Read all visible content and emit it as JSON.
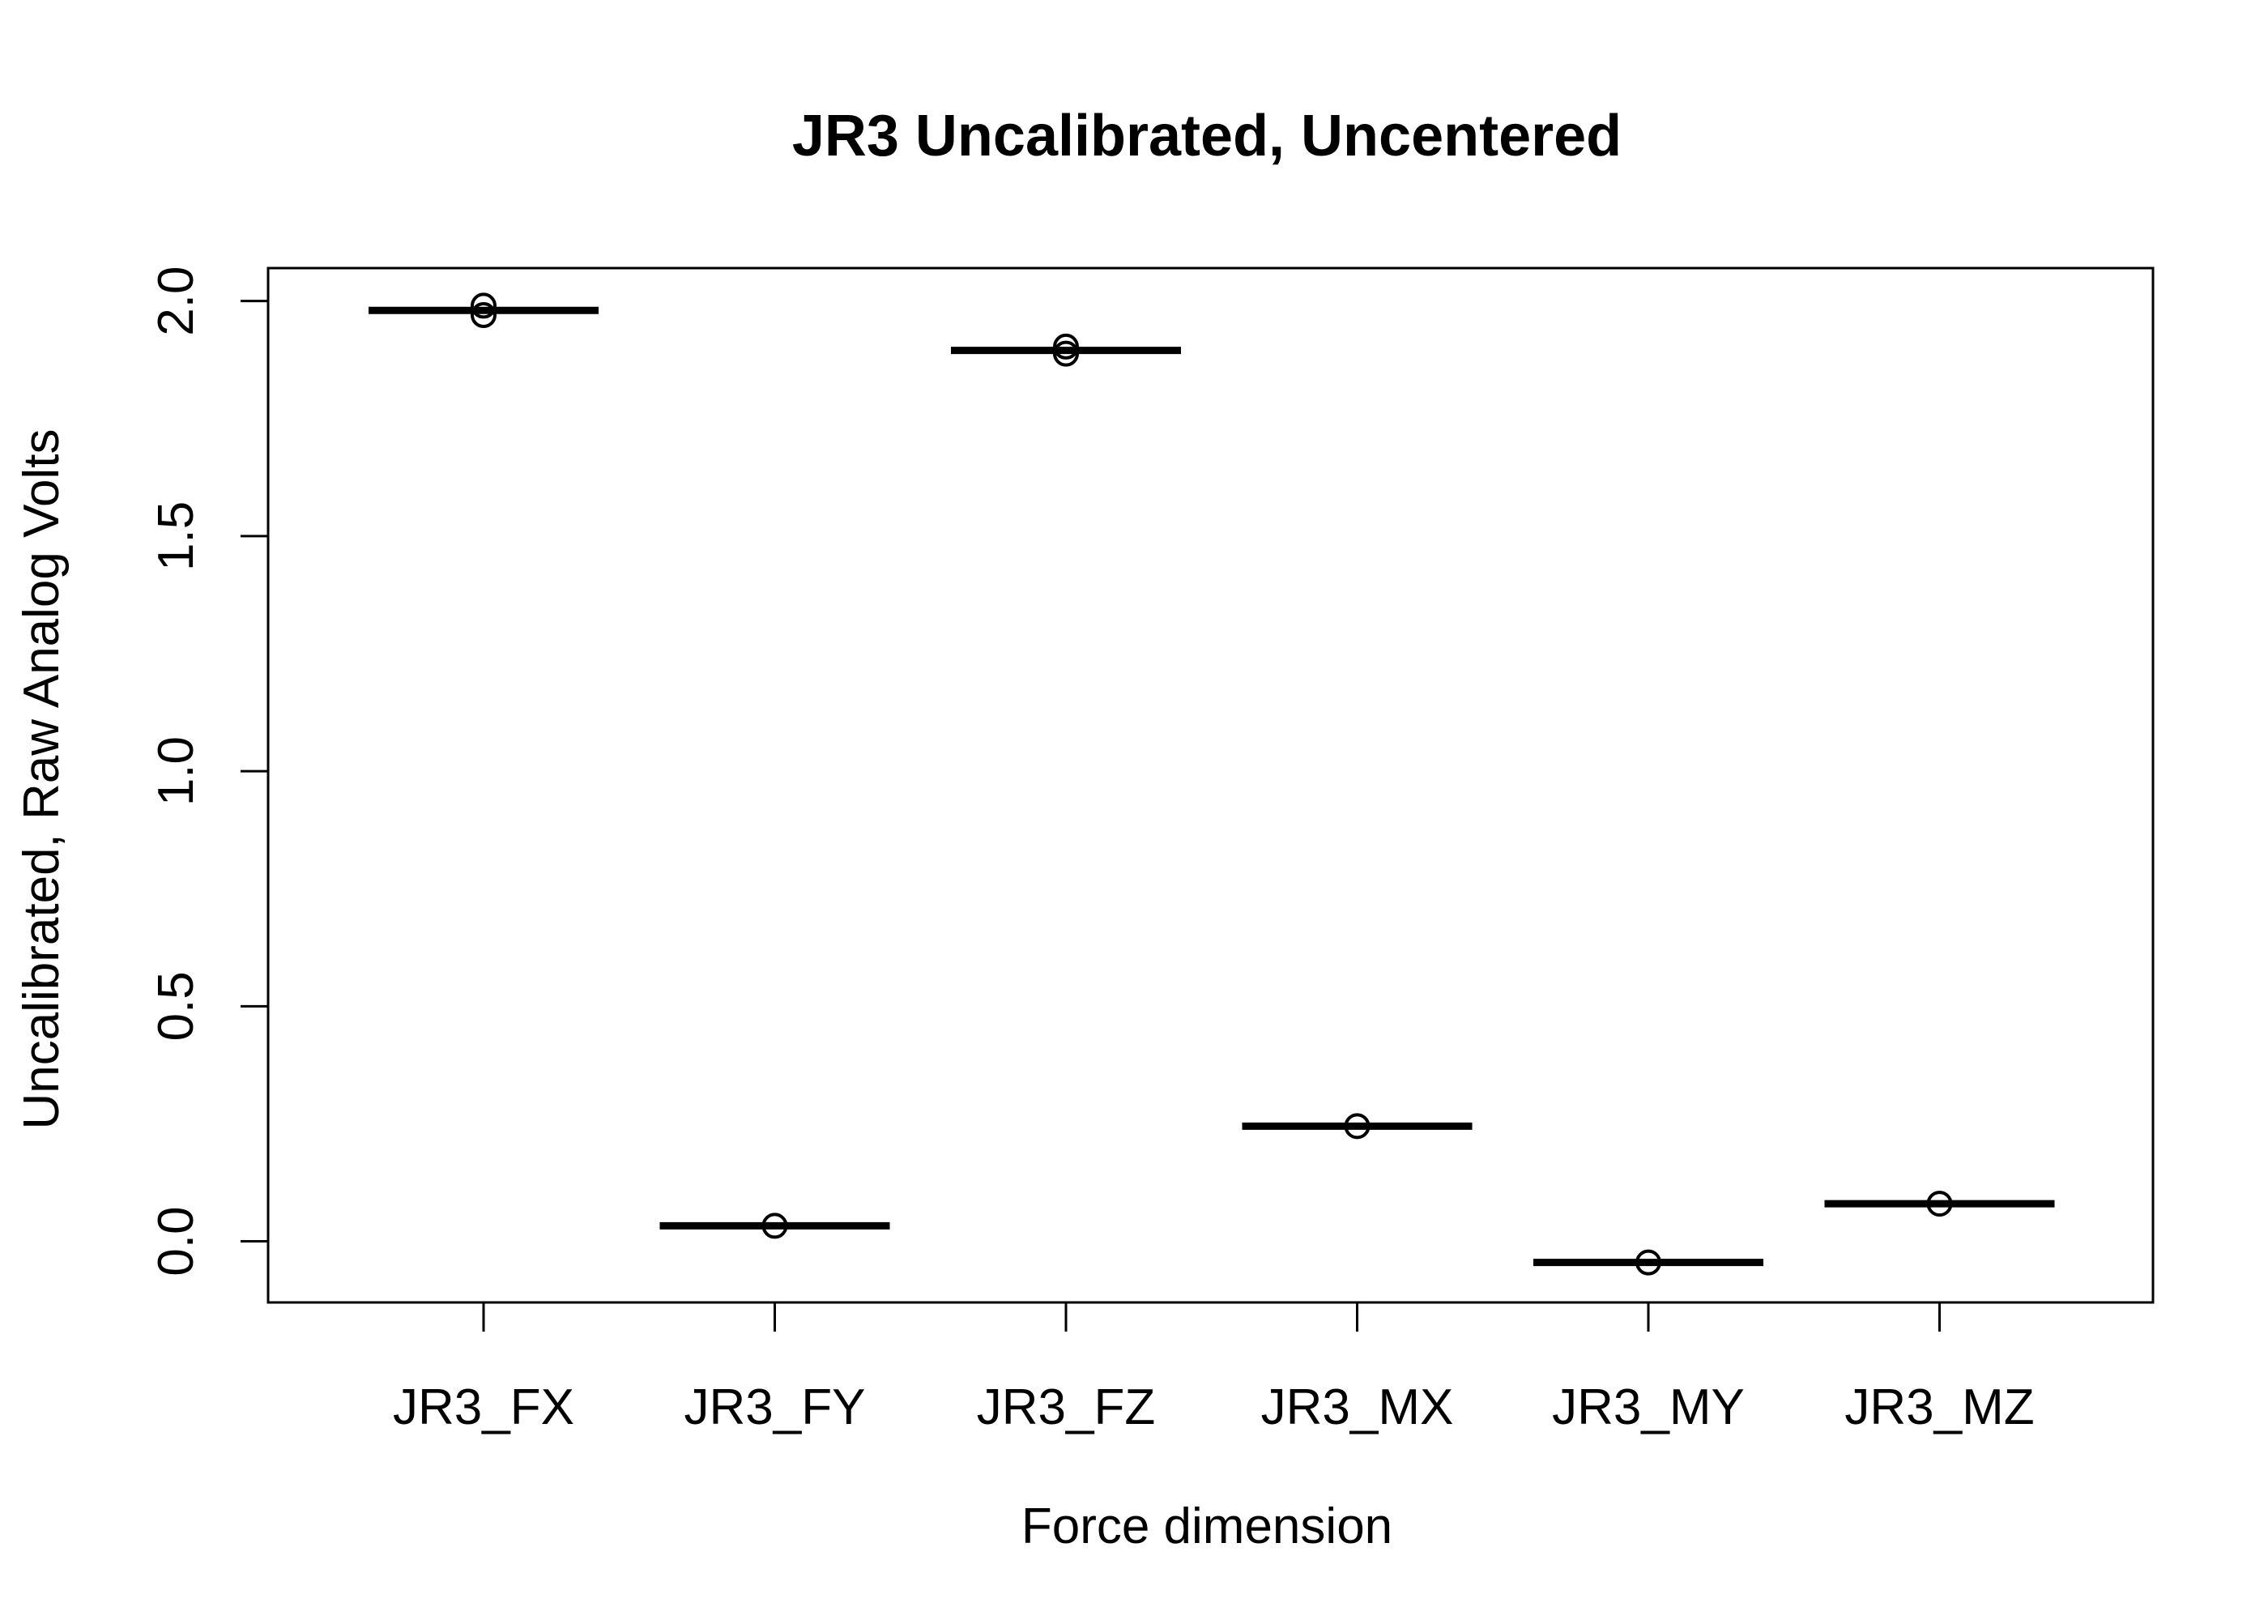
{
  "chart_data": {
    "type": "boxplot",
    "title": "JR3 Uncalibrated, Uncentered",
    "xlabel": "Force dimension",
    "ylabel": "Uncalibrated, Raw Analog Volts",
    "ylim": [
      -0.13,
      2.07
    ],
    "yticks": [
      "0.0",
      "0.5",
      "1.0",
      "1.5",
      "2.0"
    ],
    "categories": [
      "JR3_FX",
      "JR3_FY",
      "JR3_FZ",
      "JR3_MX",
      "JR3_MY",
      "JR3_MZ"
    ],
    "medians": [
      1.98,
      0.033,
      1.895,
      0.245,
      -0.045,
      0.08
    ],
    "outliers": [
      [
        1.99,
        1.97
      ],
      [
        0.033
      ],
      [
        1.903,
        1.888
      ],
      [
        0.245
      ],
      [
        -0.045
      ],
      [
        0.08
      ]
    ],
    "grid": false,
    "legend": "none"
  }
}
